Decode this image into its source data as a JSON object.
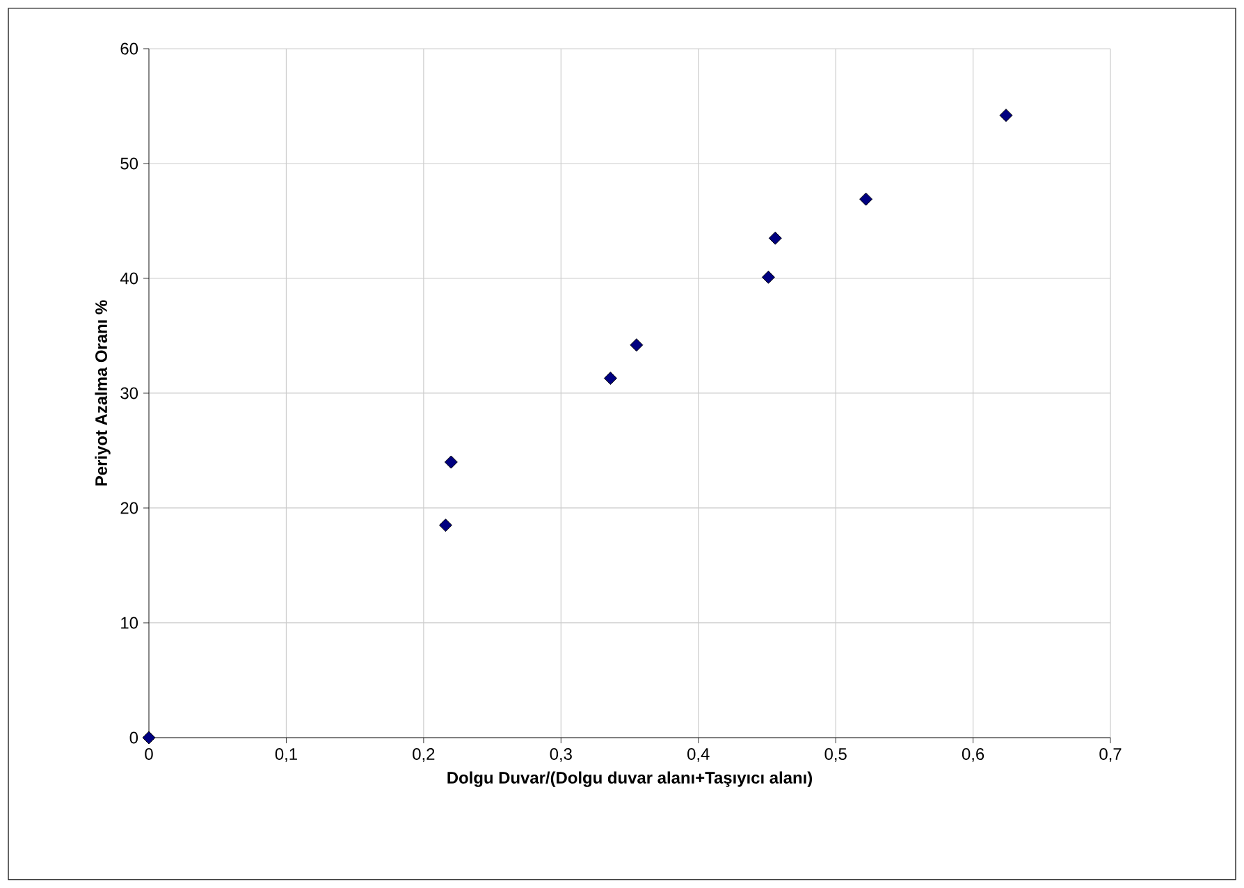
{
  "chart_data": {
    "type": "scatter",
    "xlabel": "Dolgu Duvar/(Dolgu duvar alanı+Taşıyıcı alanı)",
    "ylabel": "Periyot Azalma Oranı %",
    "x": [
      0,
      0.216,
      0.22,
      0.336,
      0.355,
      0.451,
      0.456,
      0.522,
      0.624
    ],
    "series": [
      {
        "color": "#000080",
        "values": [
          0,
          18.5,
          24.0,
          31.3,
          34.2,
          40.1,
          43.5,
          46.9,
          54.2
        ]
      }
    ],
    "xlim": [
      0,
      0.7
    ],
    "xticks": [
      0,
      {
        "value": 0.1,
        "label": "0,1"
      },
      {
        "value": 0.2,
        "label": "0,2"
      },
      {
        "value": 0.3,
        "label": "0,3"
      },
      {
        "value": 0.4,
        "label": "0,4"
      },
      {
        "value": 0.5,
        "label": "0,5"
      },
      {
        "value": 0.6,
        "label": "0,6"
      },
      {
        "value": 0.7,
        "label": "0,7"
      }
    ],
    "ylim": [
      0,
      60
    ],
    "yticks": [
      0,
      10,
      20,
      30,
      40,
      50,
      60
    ],
    "grid": true,
    "marker": "diamond"
  }
}
